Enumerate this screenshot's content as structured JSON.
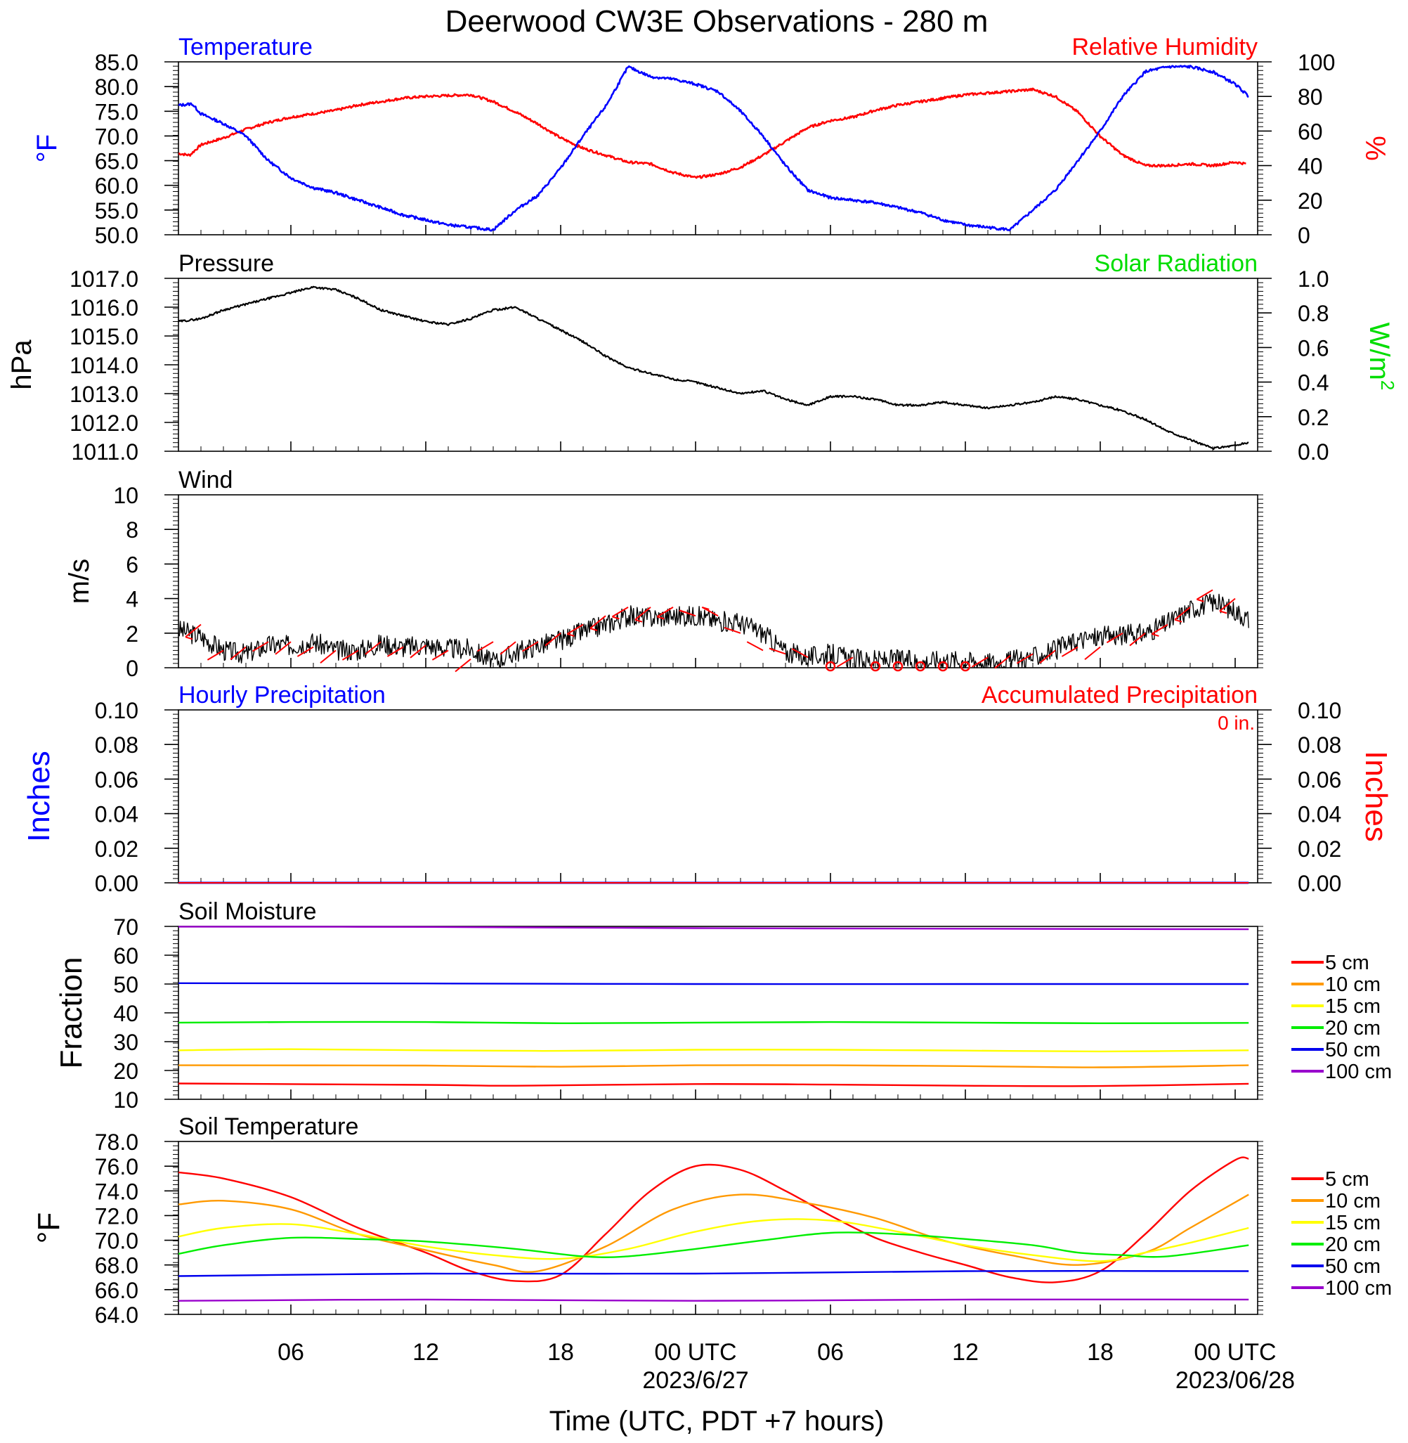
{
  "title": "Deerwood CW3E Observations - 280 m",
  "xaxis": {
    "label": "Time (UTC, PDT +7 hours)",
    "ticks": [
      {
        "h": 6,
        "label": "06",
        "date": ""
      },
      {
        "h": 12,
        "label": "12",
        "date": ""
      },
      {
        "h": 18,
        "label": "18",
        "date": ""
      },
      {
        "h": 24,
        "label": "00 UTC",
        "date": "2023/6/27"
      },
      {
        "h": 30,
        "label": "06",
        "date": ""
      },
      {
        "h": 36,
        "label": "12",
        "date": ""
      },
      {
        "h": 42,
        "label": "18",
        "date": ""
      },
      {
        "h": 48,
        "label": "00 UTC",
        "date": "2023/06/28"
      }
    ]
  },
  "colors": {
    "temperature": "#0000ff",
    "humidity": "#ff0000",
    "pressure": "#000000",
    "solar": "#00dd00",
    "wind": "#000000",
    "barbs": "#ff0000",
    "precip_hourly": "#0000ff",
    "precip_accum": "#ff0000",
    "depths": [
      "#ff0000",
      "#ff9900",
      "#ffff00",
      "#00ee00",
      "#0000ee",
      "#9900cc"
    ]
  },
  "panels": {
    "temp_rh": {
      "left_title": "Temperature",
      "right_title": "Relative Humidity",
      "left_units": "°F",
      "right_units": "%",
      "left_ticks": [
        "85.0",
        "80.0",
        "75.0",
        "70.0",
        "65.0",
        "60.0",
        "55.0",
        "50.0"
      ],
      "right_ticks": [
        "100",
        "80",
        "60",
        "40",
        "20",
        "0"
      ]
    },
    "pressure": {
      "left_title": "Pressure",
      "right_title": "Solar Radiation",
      "left_units": "hPa",
      "right_units": "W/m",
      "right_units_sup": "2",
      "left_ticks": [
        "1017.0",
        "1016.0",
        "1015.0",
        "1014.0",
        "1013.0",
        "1012.0",
        "1011.0"
      ],
      "right_ticks": [
        "1.0",
        "0.8",
        "0.6",
        "0.4",
        "0.2",
        "0.0"
      ]
    },
    "wind": {
      "left_title": "Wind",
      "left_units": "m/s",
      "left_ticks": [
        "10",
        "8",
        "6",
        "4",
        "2",
        "0"
      ]
    },
    "precip": {
      "left_title": "Hourly Precipitation",
      "right_title": "Accumulated Precipitation",
      "total": "0 in.",
      "left_units": "Inches",
      "right_units": "Inches",
      "left_ticks": [
        "0.10",
        "0.08",
        "0.06",
        "0.04",
        "0.02",
        "0.00"
      ],
      "right_ticks": [
        "0.10",
        "0.08",
        "0.06",
        "0.04",
        "0.02",
        "0.00"
      ]
    },
    "soil_moisture": {
      "left_title": "Soil Moisture",
      "left_units": "Fraction",
      "left_ticks": [
        "70",
        "60",
        "50",
        "40",
        "30",
        "20",
        "10"
      ],
      "legend": [
        "5 cm",
        "10 cm",
        "15 cm",
        "20 cm",
        "50 cm",
        "100 cm"
      ]
    },
    "soil_temp": {
      "left_title": "Soil Temperature",
      "left_units": "°F",
      "left_ticks": [
        "78.0",
        "76.0",
        "74.0",
        "72.0",
        "70.0",
        "68.0",
        "66.0",
        "64.0"
      ],
      "legend": [
        "5 cm",
        "10 cm",
        "15 cm",
        "20 cm",
        "50 cm",
        "100 cm"
      ]
    }
  },
  "chart_data": [
    {
      "type": "line",
      "title": "Temperature",
      "ylabel": "°F",
      "xlim": [
        1,
        49
      ],
      "ylim": [
        50,
        85
      ],
      "series": [
        {
          "name": "Temperature",
          "x": [
            1,
            1.6,
            2,
            3,
            4,
            5,
            6,
            7,
            8,
            9,
            10,
            11,
            12,
            13,
            14,
            15,
            16,
            17,
            18,
            19,
            20,
            21,
            22,
            23,
            24,
            25,
            26,
            27,
            28,
            29,
            30,
            31,
            32,
            33,
            34,
            35,
            36,
            37,
            38,
            39,
            40,
            41,
            42,
            43,
            44,
            45,
            46,
            47,
            48,
            48.6
          ],
          "y": [
            76.2,
            76.5,
            74.5,
            72.5,
            70,
            65,
            61.5,
            59.5,
            58.5,
            57,
            55.5,
            54,
            53,
            52,
            51.5,
            51,
            55,
            58,
            63.5,
            70,
            76,
            84,
            82,
            81.5,
            80.5,
            79,
            75,
            70,
            64,
            59,
            57.5,
            57,
            56.5,
            55.5,
            54.5,
            53,
            52,
            51.5,
            51,
            55,
            59,
            65,
            71,
            78,
            83,
            84,
            84,
            83,
            80.5,
            78
          ]
        }
      ]
    },
    {
      "type": "line",
      "title": "Relative Humidity",
      "ylabel": "%",
      "xlim": [
        1,
        49
      ],
      "ylim": [
        0,
        100
      ],
      "series": [
        {
          "name": "Relative Humidity",
          "x": [
            1,
            1.5,
            2,
            3,
            4,
            5,
            6,
            7,
            8,
            9,
            10,
            11,
            12,
            13,
            14,
            15,
            16,
            17,
            18,
            19,
            20,
            21,
            22,
            23,
            24,
            25,
            26,
            27,
            28,
            29,
            30,
            31,
            32,
            33,
            34,
            35,
            36,
            37,
            38,
            39,
            40,
            41,
            42,
            43,
            44,
            45,
            46,
            47,
            48,
            48.5
          ],
          "y": [
            47,
            46,
            52,
            56,
            61,
            65,
            68,
            70,
            72,
            75,
            77,
            79,
            80,
            80.5,
            81,
            77,
            71,
            64,
            56,
            50,
            46,
            42,
            41,
            36,
            33,
            35,
            39,
            46,
            54,
            62,
            66,
            68,
            72,
            75,
            77,
            79,
            81,
            82,
            83,
            84,
            80,
            71,
            57,
            46,
            40,
            40,
            41,
            40,
            42,
            41
          ]
        }
      ]
    },
    {
      "type": "line",
      "title": "Pressure",
      "ylabel": "hPa",
      "xlim": [
        1,
        49
      ],
      "ylim": [
        1011,
        1017
      ],
      "series": [
        {
          "name": "Pressure",
          "x": [
            1,
            2,
            3,
            4,
            5,
            6,
            7,
            8,
            9,
            10,
            11,
            12,
            13,
            14,
            15,
            16,
            17,
            18,
            19,
            20,
            21,
            22,
            23,
            24,
            25,
            26,
            27,
            28,
            29,
            30,
            31,
            32,
            33,
            34,
            35,
            36,
            37,
            38,
            39,
            40,
            41,
            42,
            43,
            44,
            45,
            46,
            47,
            48,
            48.6
          ],
          "y": [
            1015.5,
            1015.6,
            1015.9,
            1016.1,
            1016.3,
            1016.5,
            1016.7,
            1016.6,
            1016.3,
            1015.9,
            1015.7,
            1015.5,
            1015.4,
            1015.6,
            1015.9,
            1016.0,
            1015.6,
            1015.2,
            1014.8,
            1014.3,
            1013.9,
            1013.7,
            1013.5,
            1013.4,
            1013.2,
            1013.0,
            1013.1,
            1012.8,
            1012.6,
            1012.9,
            1012.9,
            1012.8,
            1012.6,
            1012.6,
            1012.7,
            1012.6,
            1012.5,
            1012.6,
            1012.7,
            1012.9,
            1012.8,
            1012.6,
            1012.4,
            1012.1,
            1011.7,
            1011.4,
            1011.1,
            1011.2,
            1011.3
          ]
        }
      ]
    },
    {
      "type": "line",
      "title": "Wind",
      "ylabel": "m/s",
      "xlim": [
        1,
        49
      ],
      "ylim": [
        0,
        10
      ],
      "series": [
        {
          "name": "Wind speed",
          "x": [
            1,
            2,
            3,
            4,
            5,
            6,
            7,
            8,
            9,
            10,
            11,
            12,
            13,
            14,
            15,
            16,
            17,
            18,
            19,
            20,
            21,
            22,
            23,
            24,
            25,
            26,
            27,
            28,
            29,
            30,
            31,
            32,
            33,
            34,
            35,
            36,
            37,
            38,
            39,
            40,
            41,
            42,
            43,
            44,
            45,
            46,
            47,
            48,
            48.6
          ],
          "y": [
            2.2,
            1.8,
            1.0,
            0.8,
            1.3,
            1.3,
            1.5,
            1.0,
            1.0,
            1.4,
            1.2,
            1.3,
            1.1,
            1.1,
            0.3,
            0.9,
            1.3,
            1.6,
            2.1,
            2.5,
            3.0,
            2.9,
            3.0,
            3.0,
            2.7,
            2.6,
            2.0,
            0.9,
            0.6,
            0.8,
            0.5,
            0.4,
            0.5,
            0.3,
            0.5,
            0.4,
            0.3,
            0.4,
            0.6,
            1.0,
            1.6,
            1.8,
            1.9,
            2.0,
            2.6,
            3.4,
            3.8,
            3.3,
            2.8
          ]
        },
        {
          "name": "Wind barbs",
          "x": [
            2,
            3,
            4,
            5,
            6,
            7,
            8,
            9,
            10,
            11,
            12,
            13,
            14,
            15,
            16,
            17,
            18,
            19,
            20,
            21,
            22,
            23,
            24,
            25,
            26,
            27,
            28,
            29,
            30,
            31,
            32,
            33,
            34,
            35,
            36,
            37,
            38,
            39,
            40,
            41,
            42,
            43,
            44,
            45,
            46,
            47,
            48
          ],
          "y": [
            2.5,
            1.0,
            1.2,
            1.5,
            1.5,
            1.2,
            1.0,
            1.0,
            1.5,
            1.2,
            1.3,
            1.0,
            0.5,
            1.5,
            1.5,
            1.5,
            2.0,
            2.5,
            3.0,
            3.5,
            3.5,
            3.5,
            3.0,
            3.0,
            2.0,
            1.0,
            0.8,
            0.6,
            0.0,
            0.6,
            0.0,
            0.0,
            0.0,
            0.0,
            0.0,
            0.6,
            0.7,
            0.8,
            1.0,
            1.2,
            1.2,
            2.0,
            2.0,
            2.5,
            3.5,
            4.5,
            4.0
          ]
        }
      ]
    },
    {
      "type": "line",
      "title": "Hourly Precipitation",
      "ylabel": "Inches",
      "xlim": [
        1,
        49
      ],
      "ylim": [
        0,
        0.1
      ],
      "series": [
        {
          "name": "Hourly Precipitation",
          "x": [
            1,
            48.6
          ],
          "y": [
            0,
            0
          ]
        },
        {
          "name": "Accumulated Precipitation",
          "x": [
            1,
            48.6
          ],
          "y": [
            0,
            0
          ]
        }
      ]
    },
    {
      "type": "line",
      "title": "Soil Moisture",
      "ylabel": "Fraction",
      "xlim": [
        1,
        49
      ],
      "ylim": [
        10,
        70
      ],
      "series": [
        {
          "name": "5 cm",
          "x": [
            1,
            12,
            16,
            24,
            30,
            36,
            42,
            48.6
          ],
          "y": [
            15.5,
            15.0,
            14.7,
            15.3,
            15.1,
            14.7,
            14.6,
            15.4
          ]
        },
        {
          "name": "10 cm",
          "x": [
            1,
            12,
            18,
            24,
            30,
            36,
            42,
            48.6
          ],
          "y": [
            21.8,
            21.7,
            21.3,
            21.8,
            21.8,
            21.5,
            21.1,
            21.8
          ]
        },
        {
          "name": "15 cm",
          "x": [
            1,
            6,
            12,
            18,
            24,
            30,
            36,
            42,
            48.6
          ],
          "y": [
            27.0,
            27.4,
            27.0,
            26.8,
            27.2,
            27.2,
            26.9,
            26.6,
            27.0
          ]
        },
        {
          "name": "20 cm",
          "x": [
            1,
            6,
            12,
            18,
            24,
            30,
            36,
            42,
            48.6
          ],
          "y": [
            36.6,
            36.8,
            36.8,
            36.4,
            36.6,
            36.8,
            36.6,
            36.4,
            36.5
          ]
        },
        {
          "name": "50 cm",
          "x": [
            1,
            12,
            24,
            36,
            48.6
          ],
          "y": [
            50.3,
            50.2,
            50.0,
            50.0,
            50.0
          ]
        },
        {
          "name": "100 cm",
          "x": [
            1,
            12,
            24,
            36,
            48.6
          ],
          "y": [
            69.9,
            69.8,
            69.4,
            69.2,
            69.0
          ]
        }
      ]
    },
    {
      "type": "line",
      "title": "Soil Temperature",
      "ylabel": "°F",
      "xlim": [
        1,
        49
      ],
      "ylim": [
        64,
        78
      ],
      "series": [
        {
          "name": "5 cm",
          "x": [
            1,
            3,
            6,
            9,
            12,
            14,
            16,
            18,
            20,
            22,
            24,
            26,
            28,
            30,
            32,
            34,
            36,
            38,
            40,
            42,
            44,
            46,
            48,
            48.6
          ],
          "y": [
            75.5,
            75.0,
            73.5,
            71.0,
            69.0,
            67.5,
            66.7,
            67.2,
            70.5,
            74.0,
            76.0,
            75.7,
            74.0,
            72.0,
            70.2,
            69.0,
            68.0,
            67.0,
            66.6,
            67.5,
            70.5,
            74.0,
            76.5,
            76.6
          ]
        },
        {
          "name": "10 cm",
          "x": [
            1,
            3,
            6,
            9,
            12,
            15,
            17,
            20,
            23,
            26,
            29,
            32,
            35,
            38,
            41,
            44,
            46,
            48.6
          ],
          "y": [
            72.9,
            73.2,
            72.5,
            70.5,
            69.2,
            68.0,
            67.5,
            69.5,
            72.5,
            73.7,
            73.0,
            71.8,
            70.0,
            68.8,
            68.0,
            69.0,
            71.0,
            73.7
          ]
        },
        {
          "name": "15 cm",
          "x": [
            1,
            3,
            6,
            9,
            12,
            15,
            18,
            21,
            24,
            27,
            30,
            33,
            36,
            39,
            42,
            44,
            46,
            48.6
          ],
          "y": [
            70.3,
            71.0,
            71.3,
            70.5,
            69.5,
            68.8,
            68.5,
            69.3,
            70.7,
            71.6,
            71.6,
            70.7,
            69.6,
            68.8,
            68.3,
            69.0,
            69.8,
            71.0
          ]
        },
        {
          "name": "20 cm",
          "x": [
            1,
            3,
            6,
            9,
            12,
            16,
            19,
            21,
            24,
            27,
            30,
            33,
            36,
            39,
            41,
            43,
            45,
            48.6
          ],
          "y": [
            68.9,
            69.6,
            70.2,
            70.1,
            69.9,
            69.3,
            68.7,
            68.7,
            69.3,
            70.0,
            70.6,
            70.5,
            70.1,
            69.6,
            69.0,
            68.8,
            68.7,
            69.6
          ]
        },
        {
          "name": "50 cm",
          "x": [
            1,
            12,
            24,
            36,
            48.6
          ],
          "y": [
            67.1,
            67.3,
            67.3,
            67.5,
            67.5
          ]
        },
        {
          "name": "100 cm",
          "x": [
            1,
            12,
            24,
            36,
            48.6
          ],
          "y": [
            65.1,
            65.2,
            65.1,
            65.2,
            65.2
          ]
        }
      ]
    }
  ]
}
